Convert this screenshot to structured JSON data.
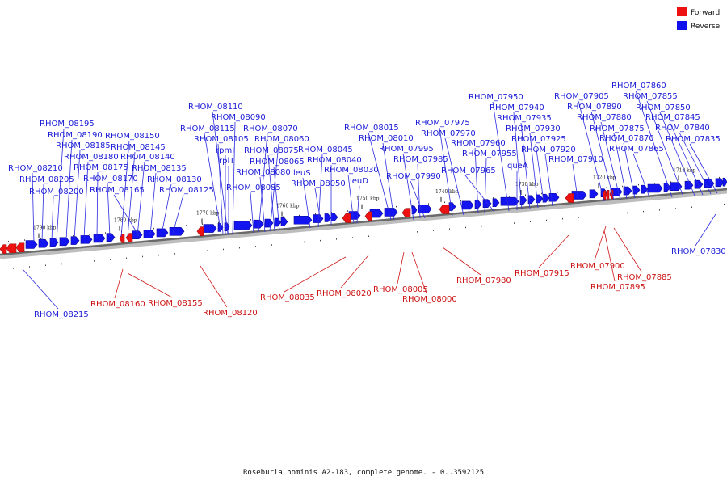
{
  "legend": {
    "forward_label": "Forward",
    "reverse_label": "Reverse",
    "forward_color": "#ee1111",
    "reverse_color": "#1111ee"
  },
  "caption": "Roseburia hominis A2-183, complete genome. - 0..3592125",
  "scale_ticks": [
    "1790 kbp",
    "1780 kbp",
    "1770 kbp",
    "1760 kbp",
    "1750 kbp",
    "1740 kbp",
    "1730 kbp",
    "1720 kbp",
    "1710 kbp"
  ],
  "reverse_labels": [
    "RHOM_08110",
    "RHOM_08090",
    "RHOM_08115",
    "RHOM_08070",
    "rpmI",
    "RHOM_08105",
    "RHOM_08060",
    "rplT",
    "RHOM_08075",
    "RHOM_08080",
    "RHOM_08065",
    "RHOM_08085",
    "RHOM_08195",
    "RHOM_08190",
    "RHOM_08150",
    "RHOM_08185",
    "RHOM_08145",
    "RHOM_08180",
    "RHOM_08140",
    "RHOM_08175",
    "RHOM_08135",
    "RHOM_08210",
    "RHOM_08170",
    "RHOM_08130",
    "RHOM_08205",
    "RHOM_08200",
    "RHOM_08165",
    "RHOM_08125",
    "RHOM_08015",
    "RHOM_08010",
    "RHOM_08045",
    "RHOM_08040",
    "RHOM_08030",
    "leuS",
    "RHOM_08050",
    "leuD",
    "RHOM_07975",
    "RHOM_07970",
    "RHOM_07995",
    "RHOM_07985",
    "RHOM_07990",
    "RHOM_07960",
    "RHOM_07955",
    "RHOM_07965",
    "RHOM_07950",
    "RHOM_07940",
    "RHOM_07935",
    "RHOM_07930",
    "RHOM_07925",
    "RHOM_07920",
    "queA",
    "RHOM_07910",
    "RHOM_07860",
    "RHOM_07905",
    "RHOM_07855",
    "RHOM_07890",
    "RHOM_07850",
    "RHOM_07880",
    "RHOM_07845",
    "RHOM_07875",
    "RHOM_07840",
    "RHOM_07870",
    "RHOM_07835",
    "RHOM_07865",
    "RHOM_07830",
    "RHOM_08215"
  ],
  "forward_labels": [
    "RHOM_08160",
    "RHOM_08155",
    "RHOM_08120",
    "RHOM_08035",
    "RHOM_08020",
    "RHOM_08005",
    "RHOM_08000",
    "RHOM_07980",
    "RHOM_07915",
    "RHOM_07900",
    "RHOM_07885",
    "RHOM_07895"
  ]
}
